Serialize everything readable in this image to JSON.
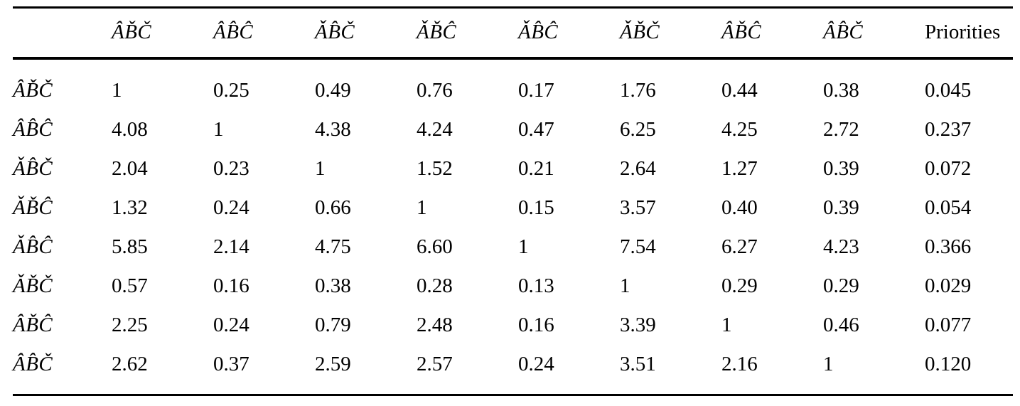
{
  "table": {
    "corner_label": "",
    "math_headers": [
      "ÂB̌Č",
      "ÂB̂Ĉ",
      "ǍB̂Č",
      "ǍB̌Ĉ",
      "ǍB̂Ĉ",
      "ǍB̌Č",
      "ÂB̌Ĉ",
      "ÂB̂Č"
    ],
    "priorities_header": "Priorities",
    "rows": [
      {
        "label": "ÂB̌Č",
        "values": [
          "1",
          "0.25",
          "0.49",
          "0.76",
          "0.17",
          "1.76",
          "0.44",
          "0.38"
        ],
        "priority": "0.045"
      },
      {
        "label": "ÂB̂Ĉ",
        "values": [
          "4.08",
          "1",
          "4.38",
          "4.24",
          "0.47",
          "6.25",
          "4.25",
          "2.72"
        ],
        "priority": "0.237"
      },
      {
        "label": "ǍB̂Č",
        "values": [
          "2.04",
          "0.23",
          "1",
          "1.52",
          "0.21",
          "2.64",
          "1.27",
          "0.39"
        ],
        "priority": "0.072"
      },
      {
        "label": "ǍB̌Ĉ",
        "values": [
          "1.32",
          "0.24",
          "0.66",
          "1",
          "0.15",
          "3.57",
          "0.40",
          "0.39"
        ],
        "priority": "0.054"
      },
      {
        "label": "ǍB̂Ĉ",
        "values": [
          "5.85",
          "2.14",
          "4.75",
          "6.60",
          "1",
          "7.54",
          "6.27",
          "4.23"
        ],
        "priority": "0.366"
      },
      {
        "label": "ǍB̌Č",
        "values": [
          "0.57",
          "0.16",
          "0.38",
          "0.28",
          "0.13",
          "1",
          "0.29",
          "0.29"
        ],
        "priority": "0.029"
      },
      {
        "label": "ÂB̌Ĉ",
        "values": [
          "2.25",
          "0.24",
          "0.79",
          "2.48",
          "0.16",
          "3.39",
          "1",
          "0.46"
        ],
        "priority": "0.077"
      },
      {
        "label": "ÂB̂Č",
        "values": [
          "2.62",
          "0.37",
          "2.59",
          "2.57",
          "0.24",
          "3.51",
          "2.16",
          "1"
        ],
        "priority": "0.120"
      }
    ]
  }
}
